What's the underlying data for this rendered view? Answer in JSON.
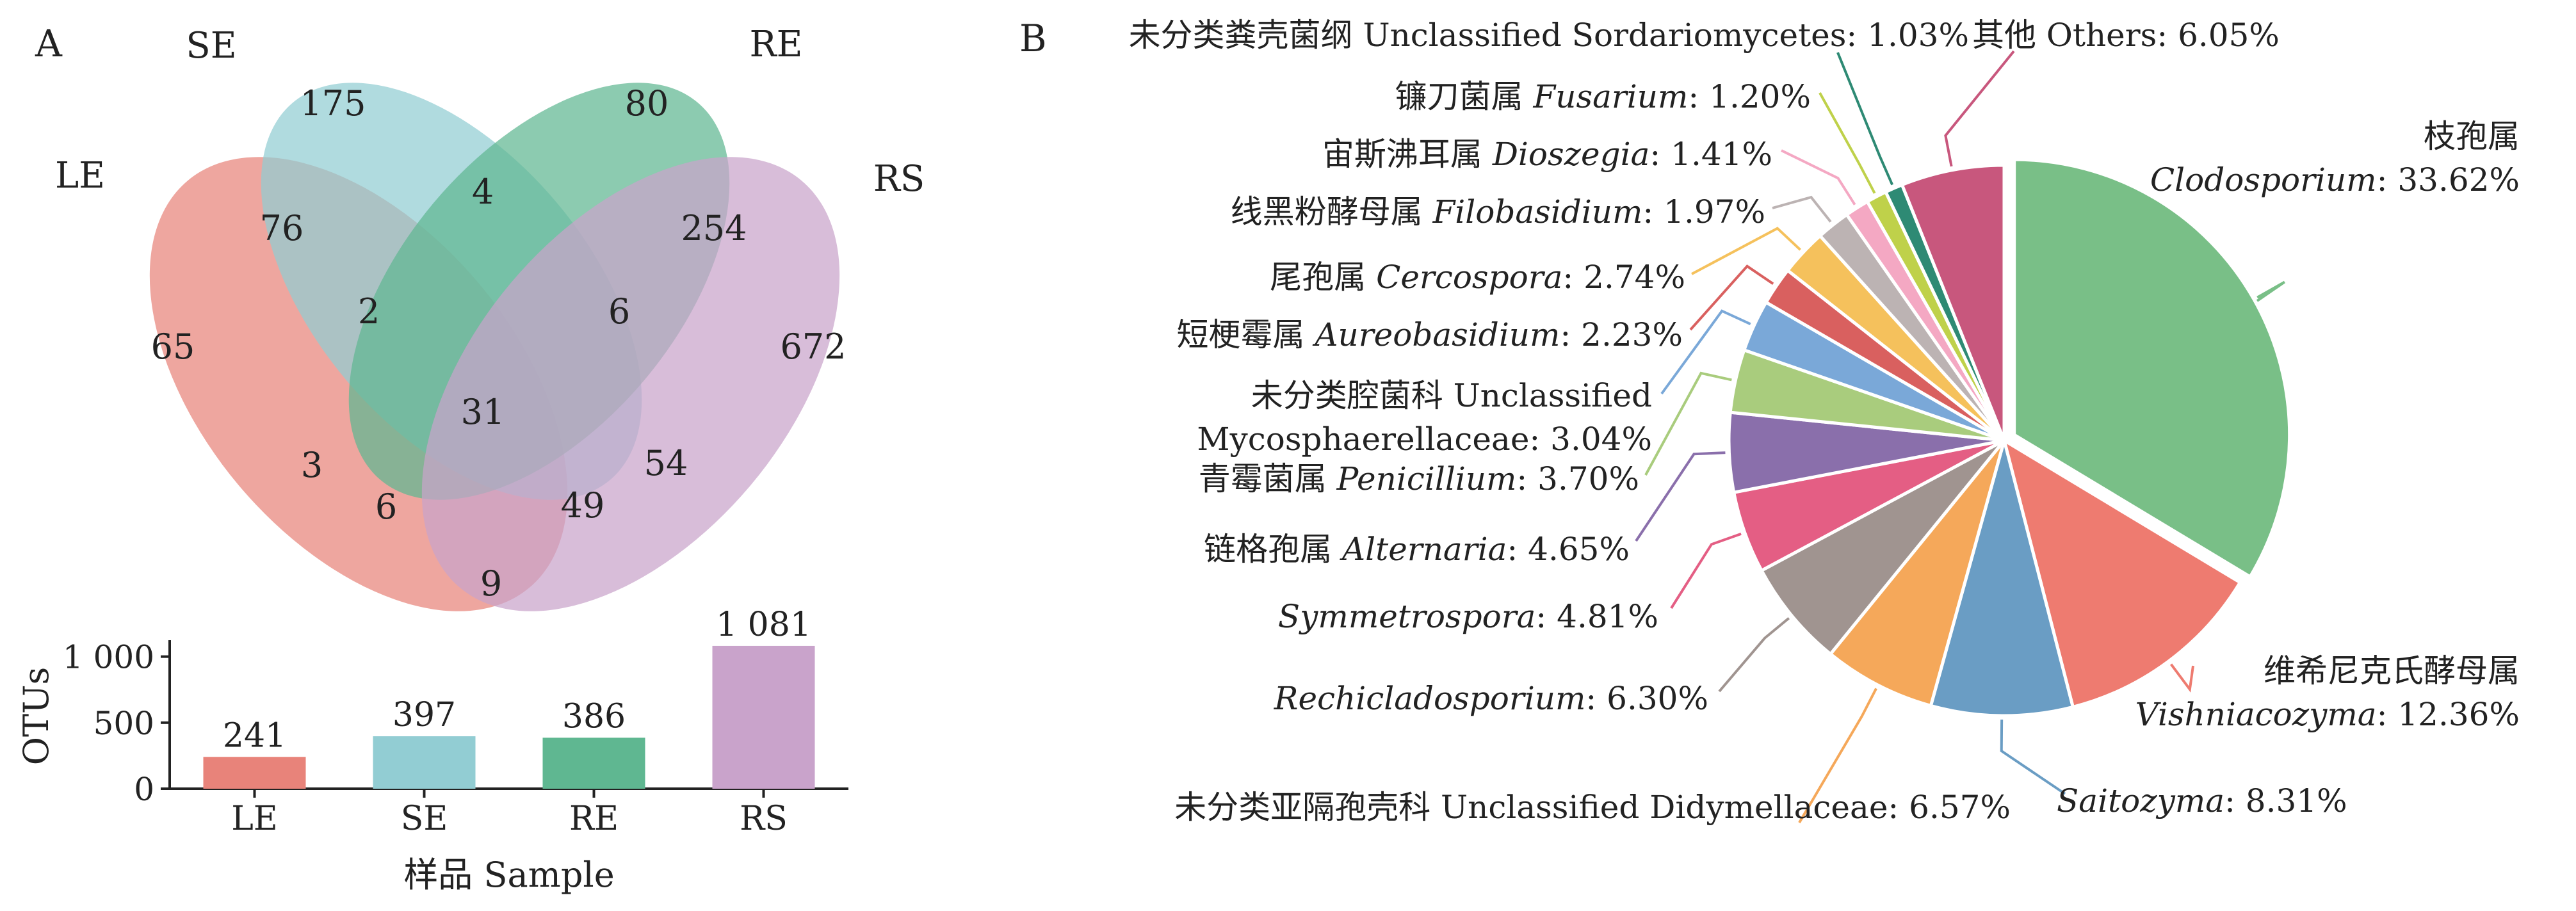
{
  "panel_a": {
    "letter": "A"
  },
  "panel_b": {
    "letter": "B"
  },
  "chart_data": [
    {
      "type": "venn",
      "sets": [
        {
          "name": "LE",
          "color": "#e8837a"
        },
        {
          "name": "SE",
          "color": "#92cdd3"
        },
        {
          "name": "RE",
          "color": "#5fb791"
        },
        {
          "name": "RS",
          "color": "#c9a3cb"
        }
      ],
      "regions": [
        {
          "sets": "SE",
          "value": "175"
        },
        {
          "sets": "RE",
          "value": "80"
        },
        {
          "sets": "LE,SE",
          "value": "76"
        },
        {
          "sets": "SE,RE",
          "value": "4"
        },
        {
          "sets": "RE,RS",
          "value": "254"
        },
        {
          "sets": "LE",
          "value": "65"
        },
        {
          "sets": "LE,SE,RE",
          "value": "2"
        },
        {
          "sets": "SE,RE,RS",
          "value": "6"
        },
        {
          "sets": "RS",
          "value": "672"
        },
        {
          "sets": "LE,SE,RE,RS",
          "value": "31"
        },
        {
          "sets": "LE,RE",
          "value": "3"
        },
        {
          "sets": "SE,RS",
          "value": "54"
        },
        {
          "sets": "LE,RE,RS",
          "value": "6"
        },
        {
          "sets": "LE,SE,RS",
          "value": "49"
        },
        {
          "sets": "LE,RS",
          "value": "9"
        }
      ]
    },
    {
      "type": "bar",
      "categories": [
        "LE",
        "SE",
        "RE",
        "RS"
      ],
      "values": [
        241,
        397,
        386,
        1081
      ],
      "value_labels": [
        "241",
        "397",
        "386",
        "1 081"
      ],
      "colors": [
        "#e8837a",
        "#92cdd3",
        "#5fb791",
        "#c9a3cb"
      ],
      "ylabel": "OTUs",
      "xlabel": "样品  Sample",
      "ylim": [
        0,
        1100
      ],
      "yticks": [
        0,
        500,
        1000
      ],
      "ytick_labels": [
        "0",
        "500",
        "1 000"
      ]
    },
    {
      "type": "pie",
      "start": "12 o'clock, clockwise",
      "exploded_slice": "Clodosporium",
      "slices": [
        {
          "value": 33.62,
          "color": "#79bf87",
          "cn": "枝孢属",
          "latin": "Clodosporium",
          "pct": ": 33.62%"
        },
        {
          "value": 12.36,
          "color": "#ee7b70",
          "cn": "维希尼克氏酵母属",
          "latin": "Vishniacozyma",
          "pct": ": 12.36%"
        },
        {
          "value": 8.31,
          "color": "#6a9dc4",
          "cn": "",
          "latin": "Saitozyma",
          "pct": ": 8.31%"
        },
        {
          "value": 6.57,
          "color": "#f5a85a",
          "cn": "未分类亚隔孢壳科 Unclassified Didymellaceae",
          "latin": "",
          "pct": ": 6.57%"
        },
        {
          "value": 6.3,
          "color": "#a09490",
          "cn": "",
          "latin": "Rechicladosporium",
          "pct": ": 6.30%"
        },
        {
          "value": 4.81,
          "color": "#e45e84",
          "cn": "",
          "latin": "Symmetrospora",
          "pct": ": 4.81%"
        },
        {
          "value": 4.65,
          "color": "#8a6fab",
          "cn": "链格孢属",
          "latin": "Alternaria",
          "pct": ": 4.65%"
        },
        {
          "value": 3.7,
          "color": "#a9cc7d",
          "cn": "青霉菌属",
          "latin": "Penicillium",
          "pct": ": 3.70%"
        },
        {
          "value": 3.04,
          "color": "#7aa8d8",
          "cn": "未分类腔菌科 Unclassified",
          "cn2": "Mycosphaerellaceae",
          "latin": "",
          "pct": ": 3.04%"
        },
        {
          "value": 2.23,
          "color": "#d9605f",
          "cn": "短梗霉属",
          "latin": "Aureobasidium",
          "pct": ": 2.23%"
        },
        {
          "value": 2.74,
          "color": "#f5c15c",
          "cn": "尾孢属",
          "latin": "Cercospora",
          "pct": ": 2.74%"
        },
        {
          "value": 1.97,
          "color": "#bcb3b3",
          "cn": "线黑粉酵母属",
          "latin": "Filobasidium",
          "pct": ": 1.97%"
        },
        {
          "value": 1.41,
          "color": "#f4a8c3",
          "cn": "宙斯沸耳属",
          "latin": "Dioszegia",
          "pct": ": 1.41%"
        },
        {
          "value": 1.2,
          "color": "#bfd14a",
          "cn": "镰刀菌属",
          "latin": "Fusarium",
          "pct": ": 1.20%"
        },
        {
          "value": 1.03,
          "color": "#2e8a74",
          "cn": "未分类粪壳菌纲 Unclassified Sordariomycetes",
          "latin": "",
          "pct": ": 1.03%"
        },
        {
          "value": 6.05,
          "color": "#c8577d",
          "cn": "其他 Others",
          "latin": "",
          "pct": ": 6.05%"
        }
      ]
    }
  ]
}
